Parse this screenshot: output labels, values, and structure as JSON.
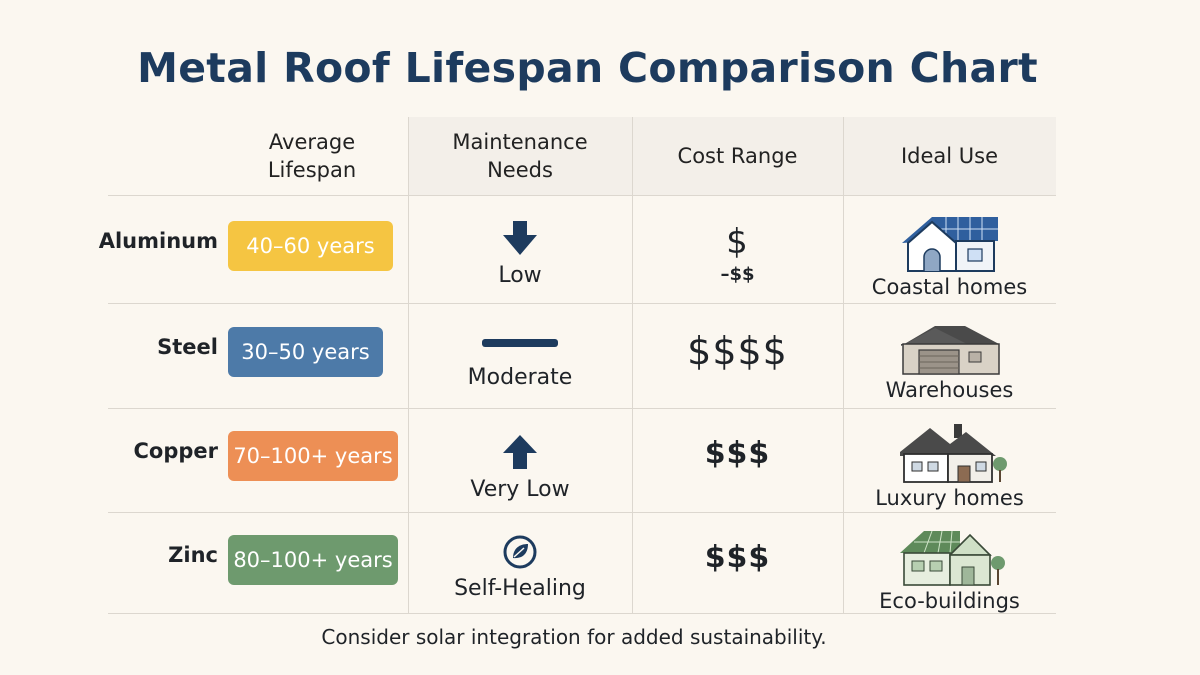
{
  "title": "Metal Roof Lifespan Comparison Chart",
  "footer": "Consider solar integration for added sustainability.",
  "colors": {
    "title": "#1d3b5e",
    "aluminum": "#f5c542",
    "steel": "#4d7aa8",
    "copper": "#ed8f55",
    "zinc": "#6e9a6e",
    "icon": "#1d3b5e"
  },
  "chart_data": {
    "type": "table",
    "title": "Metal Roof Lifespan Comparison Chart",
    "columns": [
      "Average Lifespan",
      "Maintenance Needs",
      "Cost Range",
      "Ideal Use"
    ],
    "rows": [
      {
        "material": "Aluminum",
        "lifespan": "40–60 years",
        "maintenance": "Low",
        "maintenance_icon": "arrow-down-icon",
        "cost": "$",
        "cost_sub": "–$$",
        "ideal_use": "Coastal homes",
        "use_icon": "house-solar-icon"
      },
      {
        "material": "Steel",
        "lifespan": "30–50 years",
        "maintenance": "Moderate",
        "maintenance_icon": "dash-icon",
        "cost": "$$$$",
        "cost_sub": "",
        "ideal_use": "Warehouses",
        "use_icon": "warehouse-icon"
      },
      {
        "material": "Copper",
        "lifespan": "70–100+ years",
        "maintenance": "Very Low",
        "maintenance_icon": "arrow-up-icon",
        "cost": "$$$",
        "cost_sub": "",
        "ideal_use": "Luxury homes",
        "use_icon": "luxury-house-icon"
      },
      {
        "material": "Zinc",
        "lifespan": "80–100+ years",
        "maintenance": "Self-Healing",
        "maintenance_icon": "leaf-circle-icon",
        "cost": "$$$",
        "cost_sub": "",
        "ideal_use": "Eco-buildings",
        "use_icon": "eco-building-icon"
      }
    ]
  }
}
